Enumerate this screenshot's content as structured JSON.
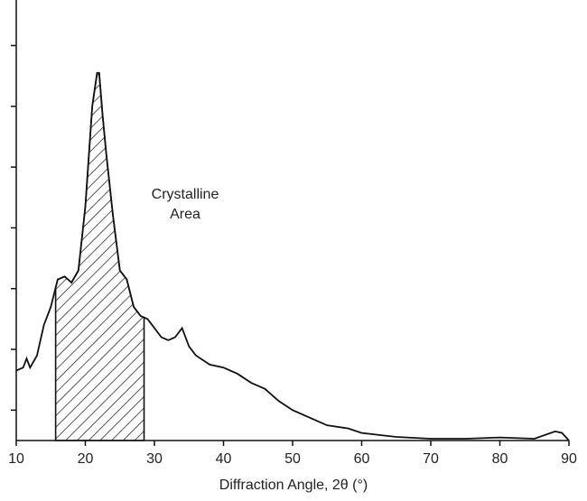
{
  "chart_data": {
    "type": "line",
    "x": [
      10,
      11,
      11.5,
      12,
      13,
      14,
      15,
      16,
      17,
      18,
      19,
      20,
      21,
      21.7,
      22,
      22.5,
      23,
      24,
      25,
      26,
      27,
      28,
      29,
      30,
      31,
      32,
      33,
      34,
      35,
      36,
      38,
      40,
      42,
      44,
      46,
      48,
      50,
      52,
      55,
      58,
      60,
      65,
      70,
      75,
      80,
      85,
      88,
      89,
      90
    ],
    "series": [
      {
        "color": "#111111",
        "values": [
          2.3,
          2.4,
          2.7,
          2.4,
          2.8,
          3.8,
          4.4,
          5.3,
          5.4,
          5.2,
          5.6,
          7.7,
          11.0,
          12.1,
          12.1,
          10.7,
          9.5,
          7.4,
          5.6,
          5.3,
          4.4,
          4.1,
          4.0,
          3.7,
          3.4,
          3.3,
          3.4,
          3.7,
          3.1,
          2.8,
          2.5,
          2.4,
          2.2,
          1.9,
          1.7,
          1.3,
          1.0,
          0.8,
          0.5,
          0.4,
          0.25,
          0.12,
          0.06,
          0.06,
          0.1,
          0.06,
          0.3,
          0.25,
          0
        ]
      }
    ],
    "xlabel": "Diffraction Angle, 2θ (°)",
    "xlim": [
      10,
      90
    ],
    "xticks": [
      10,
      20,
      30,
      40,
      50,
      60,
      70,
      80,
      90
    ],
    "ylim": [
      0,
      14.5
    ],
    "yticks": [
      1,
      3,
      5,
      7,
      9,
      11,
      13
    ],
    "shaded_region": [
      15.7,
      28.5
    ],
    "annotation": [
      "Crystalline",
      "Area"
    ]
  }
}
